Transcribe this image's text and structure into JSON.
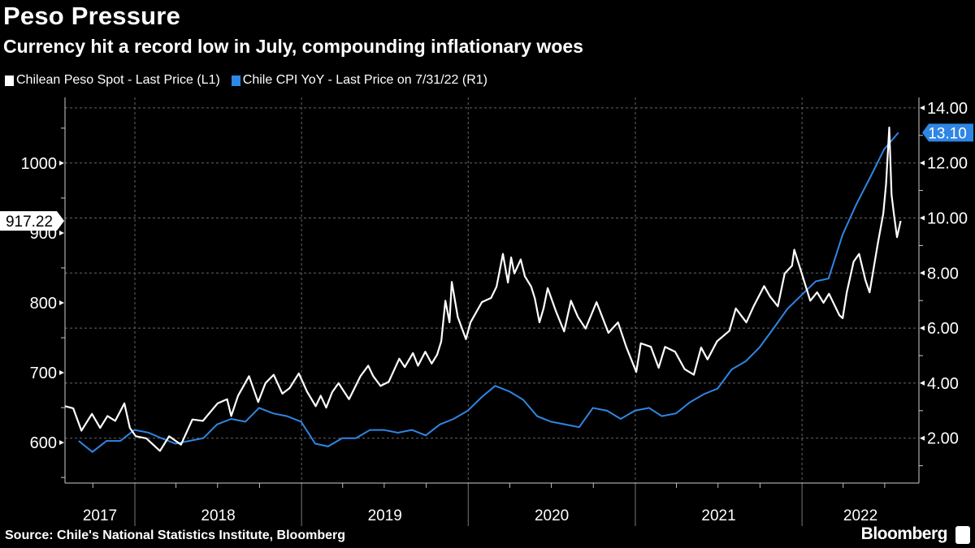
{
  "chart_data": {
    "type": "line",
    "title": "Peso Pressure",
    "subtitle": "Currency hit a record low in July, compounding inflationary woes",
    "source": "Source: Chile's National Statistics Institute, Bloomberg",
    "brand": "Bloomberg",
    "grid": true,
    "legend_placement": "top-left",
    "x_range": [
      "2017-08-01",
      "2022-09-14"
    ],
    "x_tick_labels": [
      "2017",
      "2018",
      "2019",
      "2020",
      "2021",
      "2022"
    ],
    "y_left": {
      "range": [
        542,
        1094
      ],
      "ticks": [
        600,
        700,
        800,
        900,
        1000
      ],
      "tick_labels": [
        "600",
        "700",
        "800",
        "900",
        "1000"
      ]
    },
    "y_right": {
      "range": [
        0.37,
        14.38
      ],
      "ticks": [
        2,
        4,
        6,
        8,
        10,
        12,
        14
      ],
      "tick_labels": [
        "2.00",
        "4.00",
        "6.00",
        "8.00",
        "10.00",
        "12.00",
        "14.00"
      ]
    },
    "series": [
      {
        "name": "Chilean Peso Spot - Last Price (L1)",
        "axis": "left",
        "color": "#ffffff",
        "last_value_label": "917.22",
        "points": [
          [
            "2017-08-01",
            652
          ],
          [
            "2017-08-19",
            649
          ],
          [
            "2017-09-06",
            617
          ],
          [
            "2017-09-29",
            641
          ],
          [
            "2017-10-17",
            621
          ],
          [
            "2017-11-02",
            638
          ],
          [
            "2017-11-19",
            631
          ],
          [
            "2017-12-09",
            656
          ],
          [
            "2017-12-21",
            621
          ],
          [
            "2018-01-03",
            609
          ],
          [
            "2018-01-26",
            606
          ],
          [
            "2018-02-25",
            588
          ],
          [
            "2018-03-17",
            609
          ],
          [
            "2018-04-12",
            597
          ],
          [
            "2018-05-07",
            633
          ],
          [
            "2018-05-30",
            631
          ],
          [
            "2018-07-01",
            656
          ],
          [
            "2018-07-22",
            662
          ],
          [
            "2018-07-31",
            638
          ],
          [
            "2018-08-15",
            667
          ],
          [
            "2018-09-08",
            695
          ],
          [
            "2018-09-28",
            658
          ],
          [
            "2018-10-14",
            685
          ],
          [
            "2018-11-01",
            697
          ],
          [
            "2018-11-20",
            670
          ],
          [
            "2018-12-06",
            678
          ],
          [
            "2018-12-26",
            699
          ],
          [
            "2019-01-13",
            673
          ],
          [
            "2019-02-01",
            652
          ],
          [
            "2019-02-12",
            667
          ],
          [
            "2019-02-24",
            650
          ],
          [
            "2019-03-09",
            672
          ],
          [
            "2019-03-23",
            685
          ],
          [
            "2019-04-15",
            662
          ],
          [
            "2019-05-10",
            695
          ],
          [
            "2019-05-27",
            710
          ],
          [
            "2019-06-07",
            695
          ],
          [
            "2019-06-23",
            681
          ],
          [
            "2019-07-11",
            687
          ],
          [
            "2019-08-03",
            720
          ],
          [
            "2019-08-15",
            708
          ],
          [
            "2019-09-02",
            728
          ],
          [
            "2019-09-13",
            710
          ],
          [
            "2019-09-29",
            730
          ],
          [
            "2019-10-13",
            713
          ],
          [
            "2019-10-25",
            726
          ],
          [
            "2019-11-03",
            745
          ],
          [
            "2019-11-12",
            803
          ],
          [
            "2019-11-21",
            772
          ],
          [
            "2019-11-26",
            830
          ],
          [
            "2019-12-09",
            780
          ],
          [
            "2019-12-27",
            748
          ],
          [
            "2020-01-06",
            772
          ],
          [
            "2020-01-31",
            801
          ],
          [
            "2020-02-20",
            807
          ],
          [
            "2020-03-03",
            823
          ],
          [
            "2020-03-17",
            870
          ],
          [
            "2020-03-28",
            829
          ],
          [
            "2020-04-04",
            865
          ],
          [
            "2020-04-11",
            842
          ],
          [
            "2020-04-25",
            862
          ],
          [
            "2020-05-04",
            838
          ],
          [
            "2020-05-18",
            823
          ],
          [
            "2020-05-26",
            806
          ],
          [
            "2020-06-05",
            772
          ],
          [
            "2020-06-14",
            792
          ],
          [
            "2020-06-23",
            821
          ],
          [
            "2020-07-11",
            788
          ],
          [
            "2020-07-29",
            759
          ],
          [
            "2020-08-13",
            803
          ],
          [
            "2020-08-28",
            780
          ],
          [
            "2020-09-14",
            763
          ],
          [
            "2020-10-08",
            801
          ],
          [
            "2020-11-03",
            757
          ],
          [
            "2020-11-24",
            772
          ],
          [
            "2020-12-12",
            737
          ],
          [
            "2021-01-03",
            701
          ],
          [
            "2021-01-13",
            742
          ],
          [
            "2021-02-04",
            737
          ],
          [
            "2021-02-21",
            707
          ],
          [
            "2021-03-07",
            737
          ],
          [
            "2021-03-29",
            730
          ],
          [
            "2021-04-19",
            705
          ],
          [
            "2021-05-09",
            697
          ],
          [
            "2021-05-25",
            736
          ],
          [
            "2021-06-08",
            719
          ],
          [
            "2021-06-29",
            745
          ],
          [
            "2021-07-26",
            760
          ],
          [
            "2021-08-09",
            792
          ],
          [
            "2021-09-01",
            772
          ],
          [
            "2021-09-17",
            795
          ],
          [
            "2021-10-10",
            824
          ],
          [
            "2021-10-23",
            809
          ],
          [
            "2021-11-09",
            795
          ],
          [
            "2021-11-24",
            842
          ],
          [
            "2021-12-10",
            853
          ],
          [
            "2021-12-15",
            876
          ],
          [
            "2021-12-29",
            847
          ],
          [
            "2022-01-19",
            803
          ],
          [
            "2022-02-03",
            815
          ],
          [
            "2022-02-17",
            800
          ],
          [
            "2022-03-01",
            813
          ],
          [
            "2022-03-24",
            782
          ],
          [
            "2022-03-31",
            778
          ],
          [
            "2022-04-09",
            815
          ],
          [
            "2022-04-24",
            859
          ],
          [
            "2022-05-06",
            870
          ],
          [
            "2022-05-20",
            832
          ],
          [
            "2022-05-29",
            815
          ],
          [
            "2022-06-16",
            885
          ],
          [
            "2022-06-28",
            928
          ],
          [
            "2022-07-04",
            970
          ],
          [
            "2022-07-11",
            1051
          ],
          [
            "2022-07-16",
            955
          ],
          [
            "2022-07-21",
            928
          ],
          [
            "2022-07-28",
            894
          ],
          [
            "2022-08-05",
            917.22
          ]
        ]
      },
      {
        "name": "Chile CPI YoY - Last Price on 7/31/22 (R1)",
        "axis": "right",
        "color": "#2f86e4",
        "last_value_label": "13.10",
        "points": [
          [
            "2017-08",
            1.9
          ],
          [
            "2017-09",
            1.5
          ],
          [
            "2017-10",
            1.9
          ],
          [
            "2017-11",
            1.9
          ],
          [
            "2017-12",
            2.3
          ],
          [
            "2018-01",
            2.2
          ],
          [
            "2018-02",
            2.0
          ],
          [
            "2018-03",
            1.8
          ],
          [
            "2018-04",
            1.9
          ],
          [
            "2018-05",
            2.0
          ],
          [
            "2018-06",
            2.5
          ],
          [
            "2018-07",
            2.7
          ],
          [
            "2018-08",
            2.6
          ],
          [
            "2018-09",
            3.1
          ],
          [
            "2018-10",
            2.9
          ],
          [
            "2018-11",
            2.8
          ],
          [
            "2018-12",
            2.6
          ],
          [
            "2019-01",
            1.8
          ],
          [
            "2019-02",
            1.7
          ],
          [
            "2019-03",
            2.0
          ],
          [
            "2019-04",
            2.0
          ],
          [
            "2019-05",
            2.3
          ],
          [
            "2019-06",
            2.3
          ],
          [
            "2019-07",
            2.2
          ],
          [
            "2019-08",
            2.3
          ],
          [
            "2019-09",
            2.1
          ],
          [
            "2019-10",
            2.5
          ],
          [
            "2019-11",
            2.7
          ],
          [
            "2019-12",
            3.0
          ],
          [
            "2020-01",
            3.5
          ],
          [
            "2020-02",
            3.9
          ],
          [
            "2020-03",
            3.7
          ],
          [
            "2020-04",
            3.4
          ],
          [
            "2020-05",
            2.8
          ],
          [
            "2020-06",
            2.6
          ],
          [
            "2020-07",
            2.5
          ],
          [
            "2020-08",
            2.4
          ],
          [
            "2020-09",
            3.1
          ],
          [
            "2020-10",
            3.0
          ],
          [
            "2020-11",
            2.7
          ],
          [
            "2020-12",
            3.0
          ],
          [
            "2021-01",
            3.1
          ],
          [
            "2021-02",
            2.8
          ],
          [
            "2021-03",
            2.9
          ],
          [
            "2021-04",
            3.3
          ],
          [
            "2021-05",
            3.6
          ],
          [
            "2021-06",
            3.8
          ],
          [
            "2021-07",
            4.5
          ],
          [
            "2021-08",
            4.8
          ],
          [
            "2021-09",
            5.3
          ],
          [
            "2021-10",
            6.0
          ],
          [
            "2021-11",
            6.7
          ],
          [
            "2021-12",
            7.2
          ],
          [
            "2022-01",
            7.7
          ],
          [
            "2022-02",
            7.8
          ],
          [
            "2022-03",
            9.4
          ],
          [
            "2022-04",
            10.5
          ],
          [
            "2022-05",
            11.5
          ],
          [
            "2022-06",
            12.5
          ],
          [
            "2022-07",
            13.1
          ]
        ]
      }
    ]
  }
}
